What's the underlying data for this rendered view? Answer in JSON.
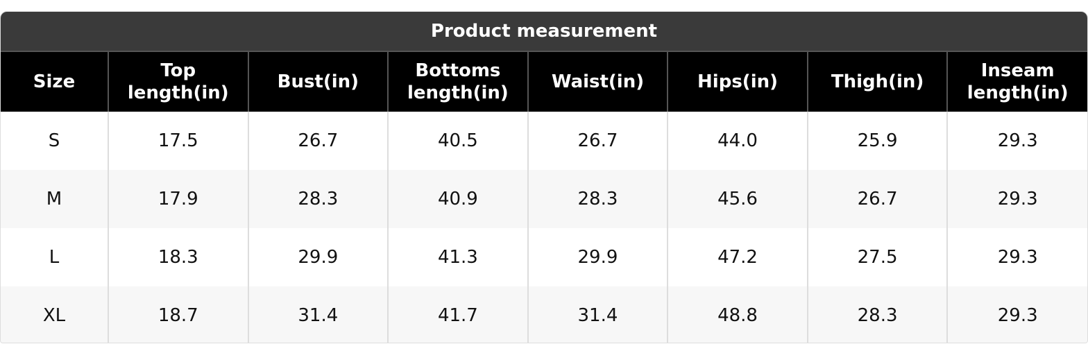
{
  "title": "Product measurement",
  "table": {
    "header": [
      "Size",
      "Top length(in)",
      "Bust(in)",
      "Bottoms length(in)",
      "Waist(in)",
      "Hips(in)",
      "Thigh(in)",
      "Inseam length(in)"
    ],
    "rows": [
      [
        "S",
        "17.5",
        "26.7",
        "40.5",
        "26.7",
        "44.0",
        "25.9",
        "29.3"
      ],
      [
        "M",
        "17.9",
        "28.3",
        "40.9",
        "28.3",
        "45.6",
        "26.7",
        "29.3"
      ],
      [
        "L",
        "18.3",
        "29.9",
        "41.3",
        "29.9",
        "47.2",
        "27.5",
        "29.3"
      ],
      [
        "XL",
        "18.7",
        "31.4",
        "41.7",
        "31.4",
        "48.8",
        "28.3",
        "29.3"
      ]
    ]
  }
}
